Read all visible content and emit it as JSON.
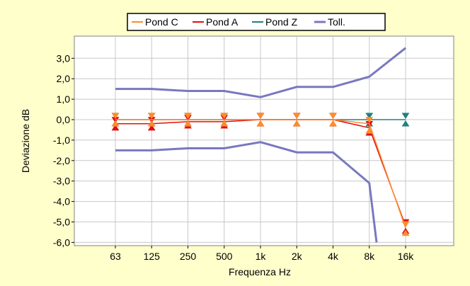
{
  "chart_data": {
    "type": "line",
    "title": "",
    "xlabel": "Frequenza Hz",
    "ylabel": "Deviazione dB",
    "categories": [
      "63",
      "125",
      "250",
      "500",
      "1k",
      "2k",
      "4k",
      "8k",
      "16k"
    ],
    "ylim": [
      -6.0,
      3.6
    ],
    "yticks": [
      "3,0",
      "2,0",
      "1,0",
      "0,0",
      "-1,0",
      "-2,0",
      "-3,0",
      "-4,0",
      "-5,0",
      "-6,0"
    ],
    "ytick_values": [
      3,
      2,
      1,
      0,
      -1,
      -2,
      -3,
      -4,
      -5,
      -6
    ],
    "grid": true,
    "legend_position": "top",
    "series": [
      {
        "name": "Pond C",
        "color": "#ff8c2a",
        "values": [
          0.0,
          0.0,
          0.0,
          0.0,
          0.0,
          0.0,
          0.0,
          -0.2,
          -5.3
        ],
        "upper": [
          0.15,
          0.15,
          0.15,
          0.15,
          0.15,
          0.15,
          0.15,
          -0.05,
          -5.15
        ],
        "lower": [
          -0.15,
          -0.15,
          -0.15,
          -0.15,
          -0.15,
          -0.15,
          -0.15,
          -0.5,
          -5.5
        ]
      },
      {
        "name": "Pond A",
        "color": "#e01010",
        "values": [
          -0.2,
          -0.2,
          -0.1,
          -0.1,
          0.0,
          0.0,
          0.0,
          -0.4,
          -5.2
        ],
        "upper": [
          -0.05,
          -0.05,
          0.05,
          0.05,
          0.15,
          0.15,
          0.15,
          -0.25,
          -5.05
        ],
        "lower": [
          -0.35,
          -0.35,
          -0.25,
          -0.25,
          -0.15,
          -0.15,
          -0.15,
          -0.6,
          -5.4
        ]
      },
      {
        "name": "Pond Z",
        "color": "#208080",
        "values": [
          0.0,
          0.0,
          0.0,
          0.0,
          0.0,
          0.0,
          0.0,
          0.0,
          0.0
        ],
        "upper": [
          0.15,
          0.15,
          0.15,
          0.15,
          0.15,
          0.15,
          0.15,
          0.15,
          0.15
        ],
        "lower": [
          -0.15,
          -0.15,
          -0.15,
          -0.15,
          -0.15,
          -0.15,
          -0.15,
          -0.15,
          -0.15
        ]
      },
      {
        "name": "Toll.",
        "color": "#7878c0",
        "upper_x": [
          0,
          1,
          2,
          3,
          4,
          5,
          6,
          7,
          8
        ],
        "upper_values": [
          1.5,
          1.5,
          1.4,
          1.4,
          1.1,
          1.6,
          1.6,
          2.1,
          3.5
        ],
        "lower_x": [
          0,
          1,
          2,
          3,
          4,
          5,
          6,
          7,
          7.2
        ],
        "lower_values": [
          -1.5,
          -1.5,
          -1.4,
          -1.4,
          -1.1,
          -1.6,
          -1.6,
          -3.1,
          -6.0
        ]
      }
    ]
  }
}
